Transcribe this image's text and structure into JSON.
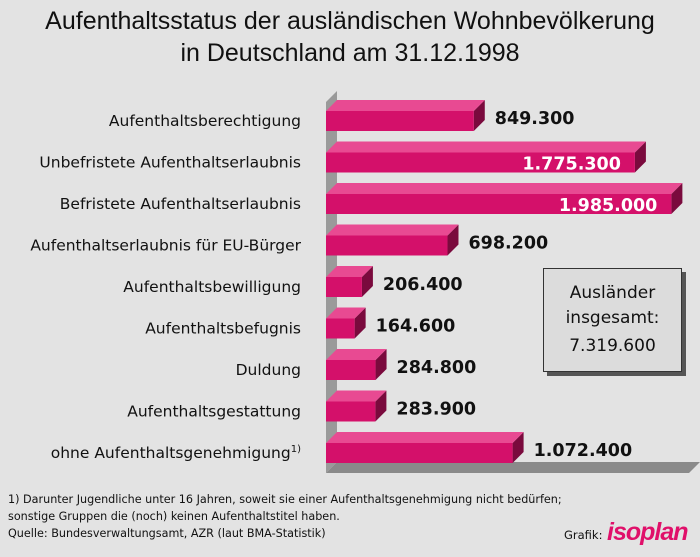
{
  "title_line1": "Aufenthaltsstatus der ausländischen Wohnbevölkerung",
  "title_line2": "in Deutschland am 31.12.1998",
  "chart_data": {
    "type": "bar",
    "orientation": "horizontal",
    "style": "3d",
    "categories": [
      "Aufenthaltsberechtigung",
      "Unbefristete Aufenthaltserlaubnis",
      "Befristete Aufenthaltserlaubnis",
      "Aufenthaltserlaubnis für EU-Bürger",
      "Aufenthaltsbewilligung",
      "Aufenthaltsbefugnis",
      "Duldung",
      "Aufenthaltsgestattung",
      "ohne Aufenthaltsgenehmigung"
    ],
    "category_superscripts": [
      "",
      "",
      "",
      "",
      "",
      "",
      "",
      "",
      "1)"
    ],
    "values": [
      849300,
      1775300,
      1985000,
      698200,
      206400,
      164600,
      284800,
      283900,
      1072400
    ],
    "value_labels": [
      "849.300",
      "1.775.300",
      "1.985.000",
      "698.200",
      "206.400",
      "164.600",
      "284.800",
      "283.900",
      "1.072.400"
    ],
    "labels_inside": [
      false,
      true,
      true,
      false,
      false,
      false,
      false,
      false,
      false
    ],
    "xlim": [
      0,
      2000000
    ],
    "bar_color": "#d4106a",
    "bar_top_color": "#e84a92",
    "bar_side_color": "#7a0a3d"
  },
  "summary_box": {
    "line1": "Ausländer",
    "line2": "insgesamt:",
    "value": "7.319.600"
  },
  "footnotes": [
    "1) Darunter Jugendliche unter 16 Jahren, soweit sie einer Aufenthaltsgenehmigung nicht bedürfen;",
    "sonstige Gruppen die (noch) keinen Aufenthaltstitel haben.",
    "Quelle: Bundesverwaltungsamt, AZR (laut BMA-Statistik)"
  ],
  "credit_label": "Grafik:",
  "credit_logo": "isoplan"
}
